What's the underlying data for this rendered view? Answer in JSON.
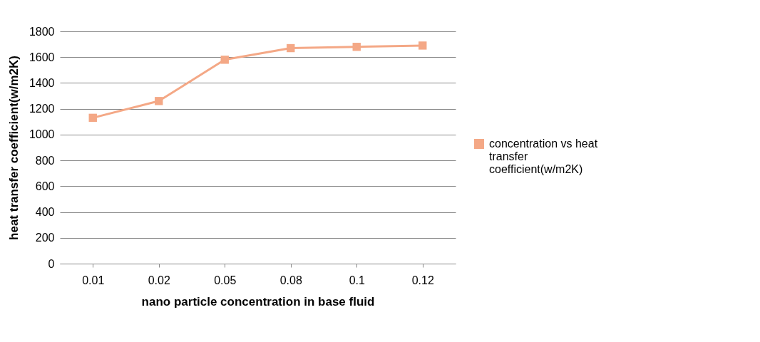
{
  "chart_data": {
    "type": "line",
    "xlabel": "nano particle concentration in base fluid",
    "ylabel": "heat transfer coefficient(w/m2K)",
    "categories": [
      "0.01",
      "0.02",
      "0.05",
      "0.08",
      "0.1",
      "0.12"
    ],
    "series": [
      {
        "name": "concentration vs heat transfer coefficient(w/m2K)",
        "color": "#f4a886",
        "values": [
          1130,
          1260,
          1580,
          1670,
          1680,
          1690
        ]
      }
    ],
    "ylim": [
      0,
      1800
    ],
    "yticks": [
      0,
      200,
      400,
      600,
      800,
      1000,
      1200,
      1400,
      1600,
      1800
    ],
    "grid": "y",
    "legend": "right",
    "marker": "square",
    "line_style": "solid"
  }
}
